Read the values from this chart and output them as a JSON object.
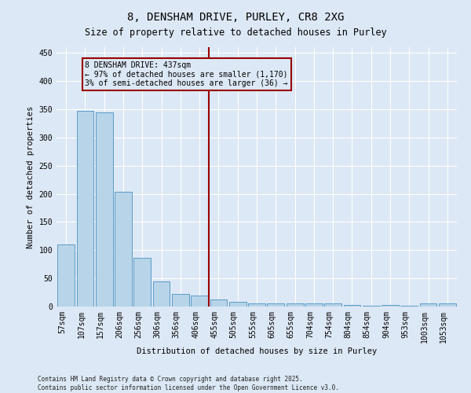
{
  "title": "8, DENSHAM DRIVE, PURLEY, CR8 2XG",
  "subtitle": "Size of property relative to detached houses in Purley",
  "xlabel": "Distribution of detached houses by size in Purley",
  "ylabel": "Number of detached properties",
  "categories": [
    "57sqm",
    "107sqm",
    "157sqm",
    "206sqm",
    "256sqm",
    "306sqm",
    "356sqm",
    "406sqm",
    "455sqm",
    "505sqm",
    "555sqm",
    "605sqm",
    "655sqm",
    "704sqm",
    "754sqm",
    "804sqm",
    "854sqm",
    "904sqm",
    "953sqm",
    "1003sqm",
    "1053sqm"
  ],
  "values": [
    110,
    347,
    344,
    203,
    86,
    45,
    22,
    19,
    13,
    9,
    5,
    5,
    5,
    5,
    5,
    3,
    1,
    3,
    1,
    6,
    6
  ],
  "bar_color": "#b8d4e8",
  "bar_edge_color": "#5b9bc8",
  "background_color": "#dce8f5",
  "grid_color": "#ffffff",
  "vline_index": 8,
  "vline_color": "#990000",
  "annotation_text": "8 DENSHAM DRIVE: 437sqm\n← 97% of detached houses are smaller (1,170)\n3% of semi-detached houses are larger (36) →",
  "annotation_box_edgecolor": "#990000",
  "annotation_bg_color": "#dce8f5",
  "annotation_text_color": "#000000",
  "ylim": [
    0,
    460
  ],
  "yticks": [
    0,
    50,
    100,
    150,
    200,
    250,
    300,
    350,
    400,
    450
  ],
  "footer": "Contains HM Land Registry data © Crown copyright and database right 2025.\nContains public sector information licensed under the Open Government Licence v3.0.",
  "title_fontsize": 10,
  "subtitle_fontsize": 8.5,
  "label_fontsize": 7.5,
  "tick_fontsize": 7,
  "annotation_fontsize": 7,
  "footer_fontsize": 5.5
}
